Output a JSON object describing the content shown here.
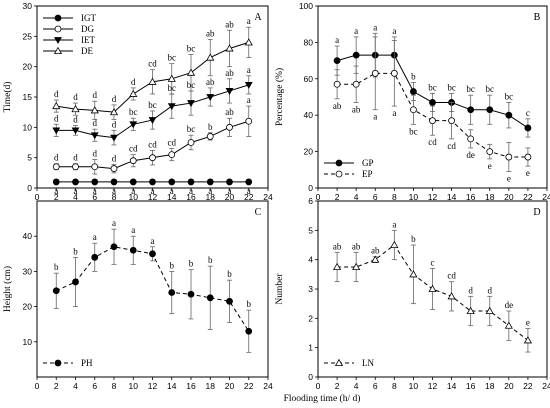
{
  "xlabel": "Flooding time (h/ d)",
  "chart_data": [
    {
      "panel": "A",
      "type": "line",
      "ylabel": "Time(d)",
      "xlim": [
        0,
        24
      ],
      "xticks": [
        0,
        2,
        4,
        6,
        8,
        10,
        12,
        14,
        16,
        18,
        20,
        22,
        24
      ],
      "ylim": [
        0,
        30
      ],
      "yticks": [
        0,
        5,
        10,
        15,
        20,
        25,
        30
      ],
      "legend_position": "top-left",
      "x": [
        2,
        4,
        6,
        8,
        10,
        12,
        14,
        16,
        18,
        20,
        22
      ],
      "series": [
        {
          "name": "IGT",
          "marker": "circle-filled",
          "dash": "solid",
          "values": [
            1,
            1,
            1,
            1,
            1,
            1,
            1,
            1,
            1,
            1,
            1
          ],
          "errors": [
            0,
            0,
            0,
            0,
            0,
            0,
            0,
            0,
            0,
            0,
            0
          ],
          "labels": [
            "a",
            "a",
            "a",
            "a",
            "a",
            "a",
            "a",
            "a",
            "a",
            "a",
            "a"
          ],
          "label_pos": "below"
        },
        {
          "name": "DG",
          "marker": "circle-open",
          "dash": "solid",
          "values": [
            3.5,
            3.5,
            3.5,
            3.2,
            4.5,
            5,
            5.5,
            7.5,
            8.5,
            10,
            11
          ],
          "errors": [
            0.5,
            0.5,
            1.2,
            0.7,
            1,
            1.2,
            1,
            1.2,
            0.6,
            1.5,
            2.5
          ],
          "labels": [
            "d",
            "d",
            "d",
            "d",
            "cd",
            "cd",
            "cd",
            "bc",
            "b",
            "ab",
            "a"
          ],
          "label_pos": "above"
        },
        {
          "name": "IET",
          "marker": "triangle-down-filled",
          "dash": "solid",
          "values": [
            9.5,
            9.5,
            8.7,
            8.3,
            10.5,
            11.2,
            13.5,
            14,
            15,
            16,
            17
          ],
          "errors": [
            1,
            0.8,
            1,
            1.2,
            1,
            1.5,
            2,
            2,
            1.5,
            2,
            1.5
          ],
          "labels": [
            "d",
            "d",
            "d",
            "d",
            "bc",
            "bc",
            "bc",
            "bc",
            "ab",
            "ab",
            "a"
          ],
          "label_pos": "above"
        },
        {
          "name": "DE",
          "marker": "triangle-up-open",
          "dash": "solid",
          "values": [
            13.5,
            13,
            12.8,
            12.5,
            15.5,
            17.5,
            18,
            19,
            21.5,
            23,
            24
          ],
          "errors": [
            1,
            1,
            1.5,
            1.2,
            1,
            2,
            2.5,
            3,
            3,
            3,
            2.5
          ],
          "labels": [
            "d",
            "d",
            "d",
            "d",
            "d",
            "cd",
            "bc",
            "bc",
            "ab",
            "ab",
            "a"
          ],
          "label_pos": "above"
        }
      ]
    },
    {
      "panel": "B",
      "type": "line",
      "ylabel": "Percentage (%)",
      "xlim": [
        0,
        24
      ],
      "xticks": [
        0,
        2,
        4,
        6,
        8,
        10,
        12,
        14,
        16,
        18,
        20,
        22,
        24
      ],
      "ylim": [
        0,
        100
      ],
      "yticks": [
        0,
        20,
        40,
        60,
        80,
        100
      ],
      "legend_position": "bottom-left",
      "x": [
        2,
        4,
        6,
        8,
        10,
        12,
        14,
        16,
        18,
        20,
        22
      ],
      "series": [
        {
          "name": "GP",
          "marker": "circle-filled",
          "dash": "solid",
          "values": [
            70,
            73,
            73,
            73,
            53,
            47,
            47,
            43,
            43,
            40,
            33
          ],
          "errors": [
            8,
            10,
            12,
            10,
            5,
            5,
            5,
            8,
            8,
            7,
            5
          ],
          "labels": [
            "a",
            "a",
            "a",
            "a",
            "b",
            "bc",
            "bc",
            "bc",
            "bc",
            "bc",
            "c"
          ],
          "label_pos": "above"
        },
        {
          "name": "EP",
          "marker": "circle-open",
          "dash": "dashed",
          "values": [
            57,
            57,
            63,
            63,
            43,
            37,
            37,
            27,
            20,
            17,
            17
          ],
          "errors": [
            8,
            10,
            20,
            18,
            8,
            8,
            10,
            5,
            4,
            8,
            5
          ],
          "labels": [
            "ab",
            "ab",
            "a",
            "a",
            "bc",
            "cd",
            "cd",
            "de",
            "e",
            "e",
            "e"
          ],
          "label_pos": "below"
        }
      ]
    },
    {
      "panel": "C",
      "type": "line",
      "ylabel": "Height (cm)",
      "xlim": [
        0,
        24
      ],
      "xticks": [
        0,
        2,
        4,
        6,
        8,
        10,
        12,
        14,
        16,
        18,
        20,
        22,
        24
      ],
      "ylim": [
        0,
        50
      ],
      "yticks": [
        10,
        20,
        30,
        40
      ],
      "legend_position": "bottom-left",
      "x": [
        2,
        4,
        6,
        8,
        10,
        12,
        14,
        16,
        18,
        20,
        22
      ],
      "series": [
        {
          "name": "PH",
          "marker": "circle-filled",
          "dash": "dashed",
          "values": [
            24.5,
            27,
            34,
            37,
            36,
            35,
            24,
            23.5,
            22.5,
            21.5,
            13
          ],
          "errors": [
            5,
            7,
            4,
            5,
            4,
            2,
            6,
            7,
            9,
            6,
            6
          ],
          "labels": [
            "b",
            "b",
            "a",
            "a",
            "a",
            "a",
            "b",
            "b",
            "b",
            "b",
            "b"
          ],
          "label_pos": "above"
        }
      ]
    },
    {
      "panel": "D",
      "type": "line",
      "ylabel": "Number",
      "xlim": [
        0,
        24
      ],
      "xticks": [
        0,
        2,
        4,
        6,
        8,
        10,
        12,
        14,
        16,
        18,
        20,
        22,
        24
      ],
      "ylim": [
        0,
        6
      ],
      "yticks": [
        0,
        1,
        2,
        3,
        4,
        5,
        6
      ],
      "legend_position": "bottom-left",
      "x": [
        2,
        4,
        6,
        8,
        10,
        12,
        14,
        16,
        18,
        20,
        22
      ],
      "series": [
        {
          "name": "LN",
          "marker": "triangle-up-open",
          "dash": "dashed",
          "values": [
            3.75,
            3.75,
            4,
            4.5,
            3.5,
            3,
            2.75,
            2.25,
            2.25,
            1.75,
            1.25
          ],
          "errors": [
            0.5,
            0.5,
            0.1,
            0.5,
            1,
            0.7,
            0.5,
            0.5,
            0.5,
            0.5,
            0.4
          ],
          "labels": [
            "ab",
            "ab",
            "ab",
            "a",
            "b",
            "c",
            "cd",
            "d",
            "d",
            "de",
            "e"
          ],
          "label_pos": "above"
        }
      ]
    }
  ]
}
